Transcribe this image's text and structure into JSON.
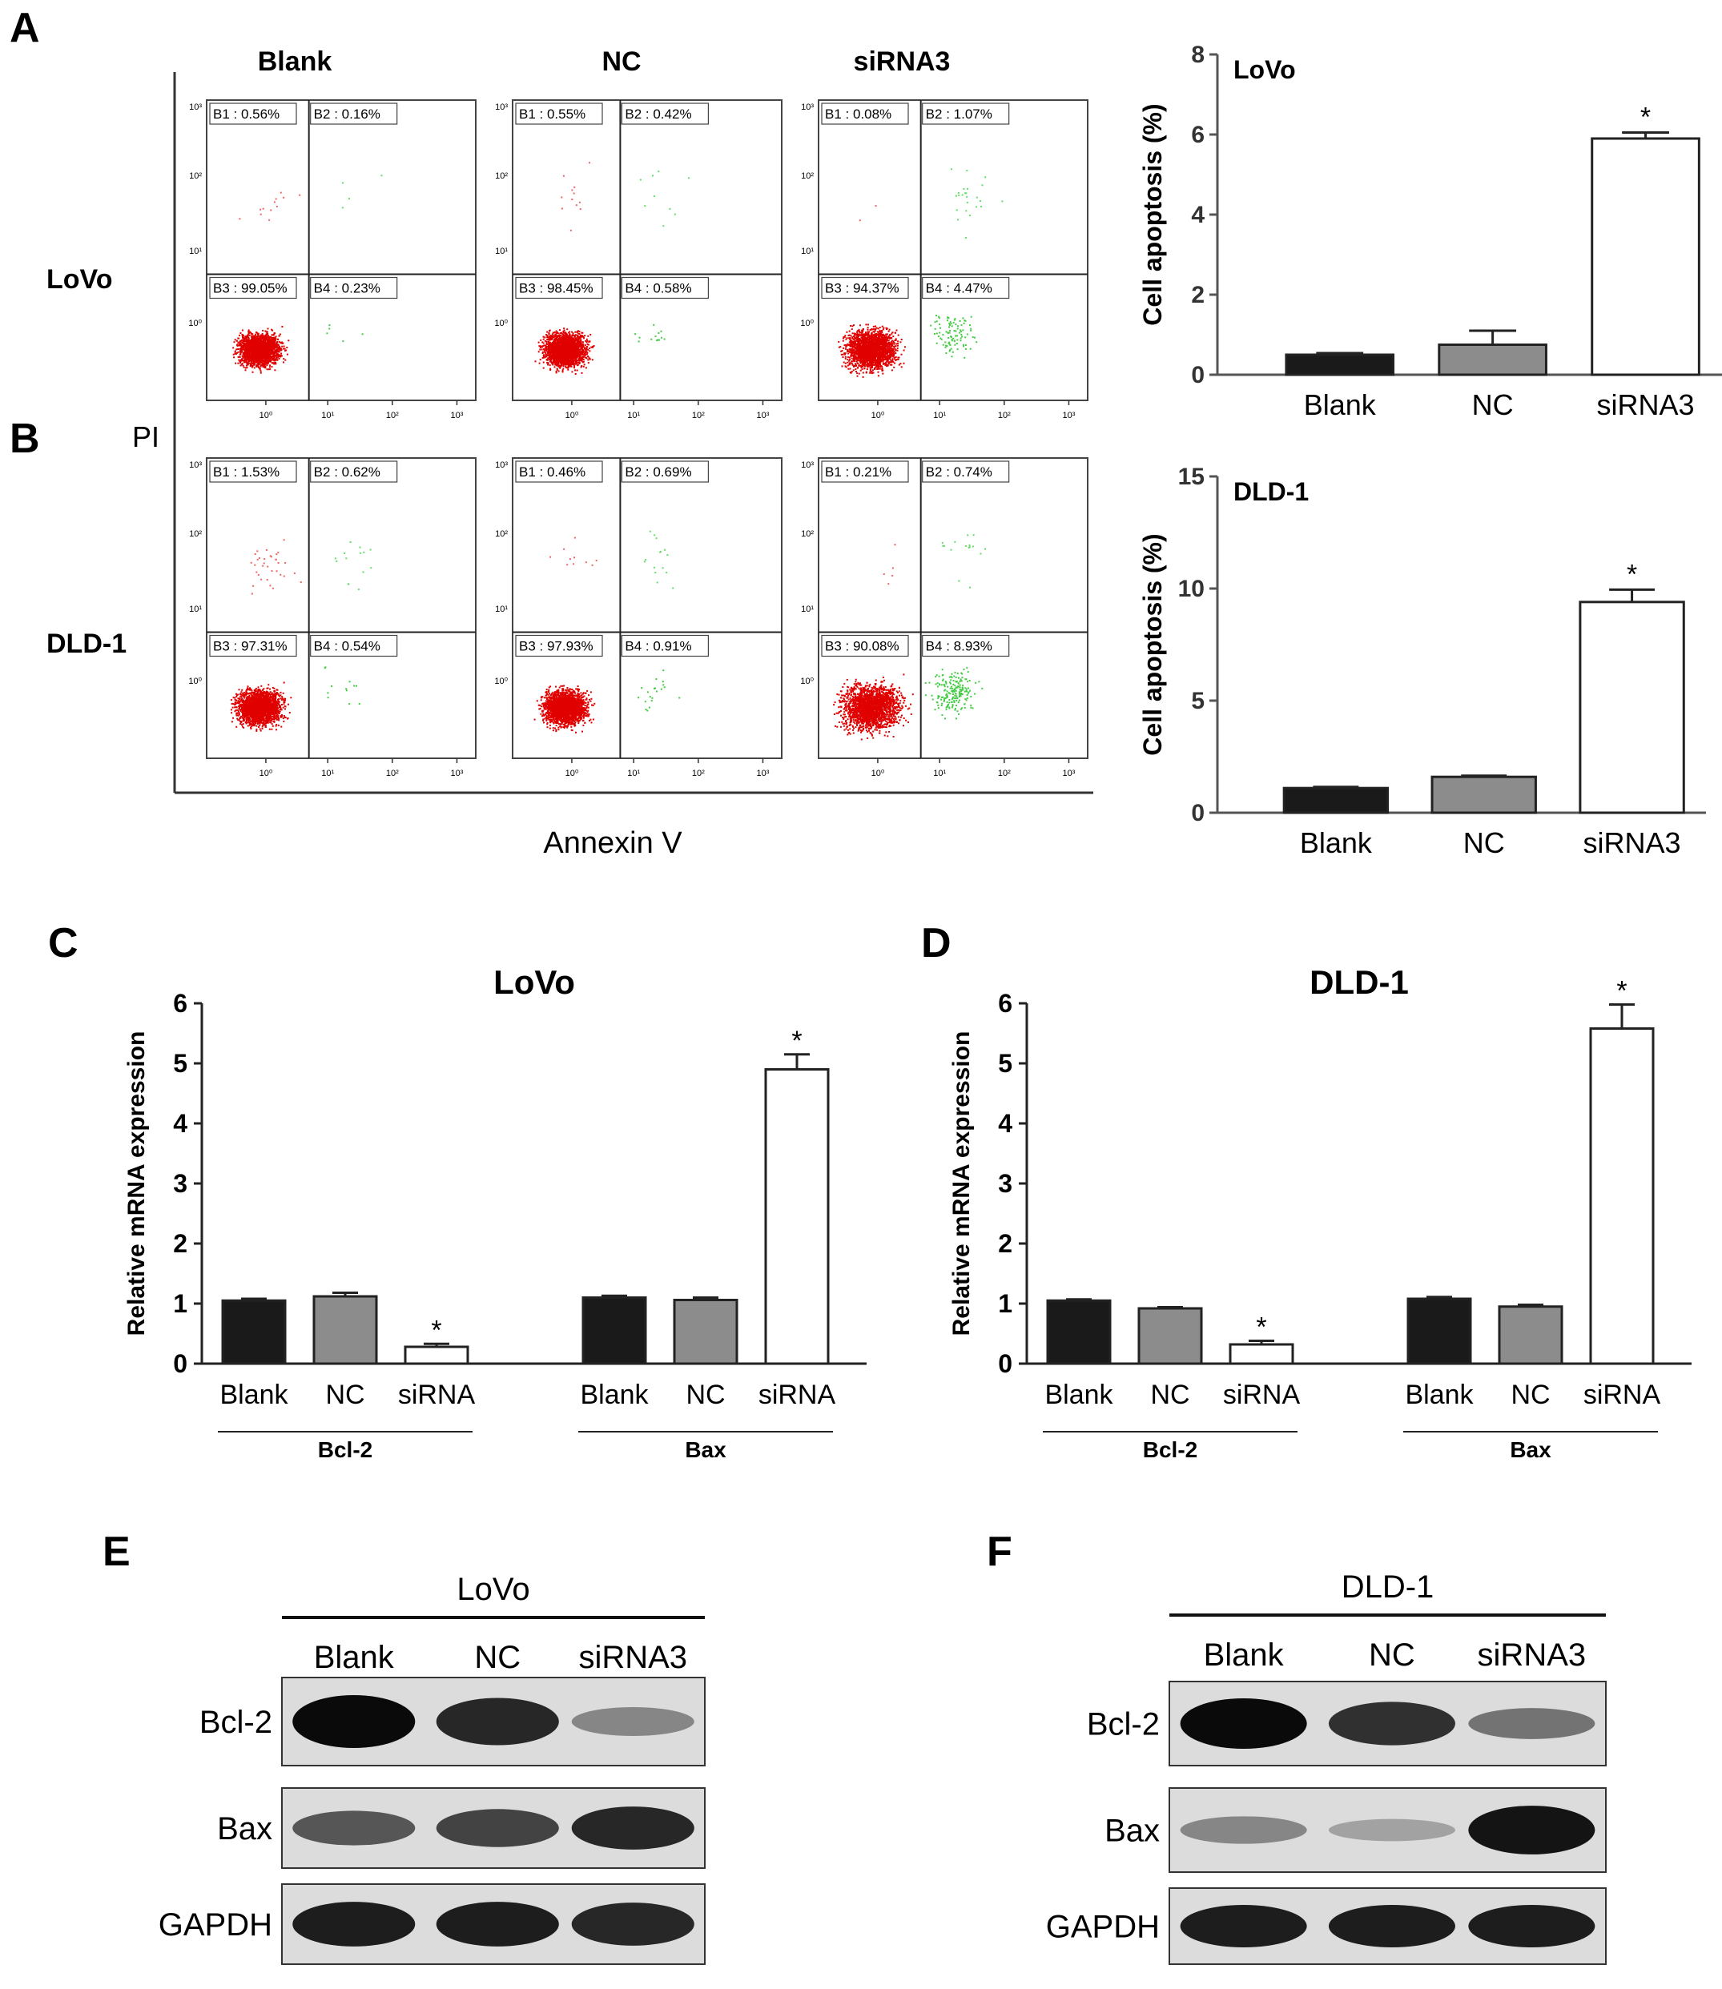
{
  "panels": {
    "A": "A",
    "B": "B",
    "C": "C",
    "D": "D",
    "E": "E",
    "F": "F"
  },
  "flow": {
    "col_titles": [
      "Blank",
      "NC",
      "siRNA3"
    ],
    "row_labels": [
      "LoVo",
      "DLD-1"
    ],
    "y_axis_label": "PI",
    "x_axis_label": "Annexin V",
    "tick_labels": [
      "10⁰",
      "10¹",
      "10²",
      "10³"
    ],
    "rows": [
      [
        {
          "B1": "B1 : 0.56%",
          "B2": "B2 : 0.16%",
          "B3": "B3 : 99.05%",
          "B4": "B4 : 0.23%",
          "pct": [
            0.56,
            0.16,
            99.05,
            0.23
          ]
        },
        {
          "B1": "B1 : 0.55%",
          "B2": "B2 : 0.42%",
          "B3": "B3 : 98.45%",
          "B4": "B4 : 0.58%",
          "pct": [
            0.55,
            0.42,
            98.45,
            0.58
          ]
        },
        {
          "B1": "B1 : 0.08%",
          "B2": "B2 : 1.07%",
          "B3": "B3 : 94.37%",
          "B4": "B4 : 4.47%",
          "pct": [
            0.08,
            1.07,
            94.37,
            4.47
          ]
        }
      ],
      [
        {
          "B1": "B1 : 1.53%",
          "B2": "B2 : 0.62%",
          "B3": "B3 : 97.31%",
          "B4": "B4 : 0.54%",
          "pct": [
            1.53,
            0.62,
            97.31,
            0.54
          ]
        },
        {
          "B1": "B1 : 0.46%",
          "B2": "B2 : 0.69%",
          "B3": "B3 : 97.93%",
          "B4": "B4 : 0.91%",
          "pct": [
            0.46,
            0.69,
            97.93,
            0.91
          ]
        },
        {
          "B1": "B1 : 0.21%",
          "B2": "B2 : 0.74%",
          "B3": "B3 : 90.08%",
          "B4": "B4 : 8.93%",
          "pct": [
            0.21,
            0.74,
            90.08,
            8.93
          ]
        }
      ]
    ]
  },
  "chart_data": [
    {
      "type": "bar",
      "id": "apoptosis-lovo",
      "title": "LoVo",
      "ylabel": "Cell apoptosis (%)",
      "categories": [
        "Blank",
        "NC",
        "siRNA3"
      ],
      "values": [
        0.5,
        0.75,
        5.9
      ],
      "errors": [
        0.04,
        0.35,
        0.15
      ],
      "significance": [
        "",
        "",
        "*"
      ],
      "colors": [
        "#1a1a1a",
        "#8c8c8c",
        "#ffffff"
      ],
      "ylim": [
        0,
        8
      ],
      "yticks": [
        0,
        2,
        4,
        6,
        8
      ]
    },
    {
      "type": "bar",
      "id": "apoptosis-dld1",
      "title": "DLD-1",
      "ylabel": "Cell apoptosis (%)",
      "categories": [
        "Blank",
        "NC",
        "siRNA3"
      ],
      "values": [
        1.1,
        1.6,
        9.4
      ],
      "errors": [
        0.05,
        0.05,
        0.55
      ],
      "significance": [
        "",
        "",
        "*"
      ],
      "colors": [
        "#1a1a1a",
        "#8c8c8c",
        "#ffffff"
      ],
      "ylim": [
        0,
        15
      ],
      "yticks": [
        0,
        5,
        10,
        15
      ]
    },
    {
      "type": "bar",
      "id": "mrna-lovo",
      "title": "LoVo",
      "ylabel": "Relative mRNA expression",
      "groups": [
        "Bcl-2",
        "Bax"
      ],
      "categories": [
        "Blank",
        "NC",
        "siRNA"
      ],
      "series": [
        {
          "group": "Bcl-2",
          "values": [
            1.05,
            1.12,
            0.28
          ],
          "errors": [
            0.03,
            0.06,
            0.05
          ],
          "significance": [
            "",
            "",
            "*"
          ]
        },
        {
          "group": "Bax",
          "values": [
            1.1,
            1.06,
            4.9
          ],
          "errors": [
            0.03,
            0.04,
            0.25
          ],
          "significance": [
            "",
            "",
            "*"
          ]
        }
      ],
      "colors": [
        "#1a1a1a",
        "#8c8c8c",
        "#ffffff"
      ],
      "ylim": [
        0,
        6
      ],
      "yticks": [
        0,
        1,
        2,
        3,
        4,
        5,
        6
      ]
    },
    {
      "type": "bar",
      "id": "mrna-dld1",
      "title": "DLD-1",
      "ylabel": "Relative mRNA expression",
      "groups": [
        "Bcl-2",
        "Bax"
      ],
      "categories": [
        "Blank",
        "NC",
        "siRNA"
      ],
      "series": [
        {
          "group": "Bcl-2",
          "values": [
            1.05,
            0.92,
            0.32
          ],
          "errors": [
            0.02,
            0.02,
            0.06
          ],
          "significance": [
            "",
            "",
            "*"
          ]
        },
        {
          "group": "Bax",
          "values": [
            1.08,
            0.95,
            5.58
          ],
          "errors": [
            0.03,
            0.03,
            0.4
          ],
          "significance": [
            "",
            "",
            "*"
          ]
        }
      ],
      "colors": [
        "#1a1a1a",
        "#8c8c8c",
        "#ffffff"
      ],
      "ylim": [
        0,
        6
      ],
      "yticks": [
        0,
        1,
        2,
        3,
        4,
        5,
        6
      ]
    }
  ],
  "western": [
    {
      "title": "LoVo",
      "lanes": [
        "Blank",
        "NC",
        "siRNA3"
      ],
      "proteins": [
        "Bcl-2",
        "Bax",
        "GAPDH"
      ],
      "intensity": [
        [
          1.0,
          0.85,
          0.35
        ],
        [
          0.6,
          0.7,
          0.85
        ],
        [
          0.9,
          0.9,
          0.85
        ]
      ]
    },
    {
      "title": "DLD-1",
      "lanes": [
        "Blank",
        "NC",
        "siRNA3"
      ],
      "proteins": [
        "Bcl-2",
        "Bax",
        "GAPDH"
      ],
      "intensity": [
        [
          1.0,
          0.8,
          0.45
        ],
        [
          0.35,
          0.2,
          0.95
        ],
        [
          0.9,
          0.9,
          0.9
        ]
      ]
    }
  ]
}
